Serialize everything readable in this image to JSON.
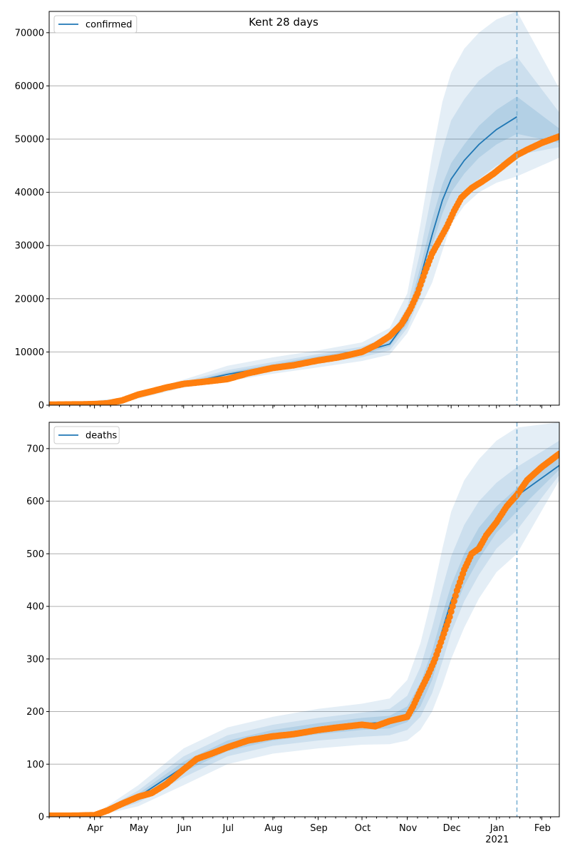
{
  "figure": {
    "title": "Kent 28 days"
  },
  "colors": {
    "model": "#1f77b4",
    "observed": "#ff7f0e",
    "band": "#1f77b4",
    "grid": "#b0b0b0",
    "now_line": "#7fb3d5"
  },
  "chart_data": [
    {
      "type": "line",
      "name": "confirmed-panel",
      "legend": {
        "label": "confirmed",
        "position": "top-left"
      },
      "grid": "y",
      "x_range": [
        "2020-03-01",
        "2021-02-13"
      ],
      "ylim": [
        0,
        74000
      ],
      "y_ticks": [
        0,
        10000,
        20000,
        30000,
        40000,
        50000,
        60000,
        70000
      ],
      "x_ticks": [
        {
          "date": "2020-04-01",
          "label": "Apr"
        },
        {
          "date": "2020-05-01",
          "label": "May"
        },
        {
          "date": "2020-06-01",
          "label": "Jun"
        },
        {
          "date": "2020-07-01",
          "label": "Jul"
        },
        {
          "date": "2020-08-01",
          "label": "Aug"
        },
        {
          "date": "2020-09-01",
          "label": "Sep"
        },
        {
          "date": "2020-10-01",
          "label": "Oct"
        },
        {
          "date": "2020-11-01",
          "label": "Nov"
        },
        {
          "date": "2020-12-01",
          "label": "Dec"
        },
        {
          "date": "2021-01-01",
          "label": "Jan",
          "sublabel": "2021"
        },
        {
          "date": "2021-02-01",
          "label": "Feb"
        }
      ],
      "show_tick_labels": false,
      "now_line": "2021-01-15",
      "series": [
        {
          "name": "confirmed",
          "kind": "model-line",
          "x": [
            "2020-03-01",
            "2020-04-01",
            "2020-04-20",
            "2020-05-01",
            "2020-06-01",
            "2020-07-01",
            "2020-08-01",
            "2020-09-01",
            "2020-10-01",
            "2020-10-20",
            "2020-11-01",
            "2020-11-10",
            "2020-11-18",
            "2020-11-25",
            "2020-12-01",
            "2020-12-10",
            "2020-12-20",
            "2021-01-01",
            "2021-01-15"
          ],
          "y": [
            0,
            200,
            800,
            2000,
            4000,
            5800,
            7300,
            8800,
            10000,
            11500,
            16000,
            24000,
            32000,
            38500,
            42500,
            46000,
            49000,
            51800,
            54200
          ]
        },
        {
          "name": "observed",
          "kind": "points",
          "x": [
            "2020-03-01",
            "2020-03-20",
            "2020-04-01",
            "2020-04-10",
            "2020-04-20",
            "2020-05-01",
            "2020-05-10",
            "2020-05-20",
            "2020-06-01",
            "2020-06-15",
            "2020-07-01",
            "2020-07-15",
            "2020-08-01",
            "2020-08-15",
            "2020-09-01",
            "2020-09-15",
            "2020-10-01",
            "2020-10-10",
            "2020-10-20",
            "2020-10-28",
            "2020-11-03",
            "2020-11-08",
            "2020-11-13",
            "2020-11-18",
            "2020-11-23",
            "2020-11-28",
            "2020-12-03",
            "2020-12-08",
            "2020-12-15",
            "2020-12-22",
            "2020-12-30",
            "2021-01-08",
            "2021-01-15",
            "2021-01-22",
            "2021-02-01",
            "2021-02-13"
          ],
          "y": [
            100,
            150,
            200,
            350,
            900,
            2000,
            2600,
            3300,
            4000,
            4400,
            4900,
            6000,
            7000,
            7500,
            8400,
            9000,
            10000,
            11200,
            13000,
            15200,
            18000,
            21000,
            25000,
            28500,
            31000,
            33500,
            36500,
            39000,
            40800,
            42000,
            43500,
            45500,
            47000,
            48000,
            49300,
            50500
          ]
        },
        {
          "name": "band-outer",
          "kind": "band",
          "x": [
            "2020-03-01",
            "2020-04-20",
            "2020-06-01",
            "2020-07-01",
            "2020-08-01",
            "2020-09-01",
            "2020-10-01",
            "2020-10-20",
            "2020-11-01",
            "2020-11-10",
            "2020-11-18",
            "2020-11-25",
            "2020-12-01",
            "2020-12-10",
            "2020-12-20",
            "2021-01-01",
            "2021-01-15",
            "2021-02-13"
          ],
          "lower": [
            0,
            500,
            3300,
            4500,
            5900,
            7100,
            8300,
            9500,
            13500,
            18500,
            23000,
            29000,
            34000,
            37500,
            40000,
            41800,
            43000,
            46500
          ],
          "upper": [
            0,
            1400,
            4800,
            7400,
            9000,
            10300,
            11800,
            14500,
            21000,
            34000,
            47000,
            57000,
            62500,
            67000,
            70000,
            72500,
            74000,
            59500
          ]
        },
        {
          "name": "band-mid",
          "kind": "band",
          "x": [
            "2020-03-01",
            "2020-04-20",
            "2020-06-01",
            "2020-07-01",
            "2020-08-01",
            "2020-09-01",
            "2020-10-01",
            "2020-10-20",
            "2020-11-01",
            "2020-11-10",
            "2020-11-18",
            "2020-11-25",
            "2020-12-01",
            "2020-12-10",
            "2020-12-20",
            "2021-01-01",
            "2021-01-15",
            "2021-02-13"
          ],
          "lower": [
            0,
            650,
            3600,
            5000,
            6500,
            7900,
            9000,
            10300,
            14500,
            20500,
            27000,
            32500,
            36500,
            39500,
            42500,
            45000,
            47000,
            48500
          ],
          "upper": [
            0,
            1150,
            4400,
            6600,
            8100,
            9600,
            11000,
            13000,
            18500,
            29000,
            40000,
            48000,
            53500,
            57500,
            61000,
            63500,
            65500,
            55000
          ]
        },
        {
          "name": "band-inner",
          "kind": "band",
          "x": [
            "2020-03-01",
            "2020-04-20",
            "2020-06-01",
            "2020-07-01",
            "2020-08-01",
            "2020-09-01",
            "2020-10-01",
            "2020-10-20",
            "2020-11-01",
            "2020-11-10",
            "2020-11-18",
            "2020-11-25",
            "2020-12-01",
            "2020-12-10",
            "2020-12-20",
            "2021-01-01",
            "2021-01-15",
            "2021-02-13"
          ],
          "lower": [
            0,
            720,
            3800,
            5400,
            6900,
            8300,
            9500,
            11000,
            15300,
            22200,
            30000,
            36000,
            40000,
            43500,
            46500,
            49000,
            51000,
            49300
          ],
          "upper": [
            0,
            900,
            4200,
            6200,
            7700,
            9200,
            10500,
            12200,
            17000,
            26000,
            35000,
            41500,
            45500,
            49000,
            52500,
            55500,
            58000,
            52000
          ]
        }
      ]
    },
    {
      "type": "line",
      "name": "deaths-panel",
      "legend": {
        "label": "deaths",
        "position": "top-left"
      },
      "grid": "y",
      "x_range": [
        "2020-03-01",
        "2021-02-13"
      ],
      "ylim": [
        0,
        750
      ],
      "y_ticks": [
        0,
        100,
        200,
        300,
        400,
        500,
        600,
        700
      ],
      "x_ticks": [
        {
          "date": "2020-04-01",
          "label": "Apr"
        },
        {
          "date": "2020-05-01",
          "label": "May"
        },
        {
          "date": "2020-06-01",
          "label": "Jun"
        },
        {
          "date": "2020-07-01",
          "label": "Jul"
        },
        {
          "date": "2020-08-01",
          "label": "Aug"
        },
        {
          "date": "2020-09-01",
          "label": "Sep"
        },
        {
          "date": "2020-10-01",
          "label": "Oct"
        },
        {
          "date": "2020-11-01",
          "label": "Nov"
        },
        {
          "date": "2020-12-01",
          "label": "Dec"
        },
        {
          "date": "2021-01-01",
          "label": "Jan",
          "sublabel": "2021"
        },
        {
          "date": "2021-02-01",
          "label": "Feb"
        }
      ],
      "show_tick_labels": true,
      "now_line": "2021-01-15",
      "series": [
        {
          "name": "deaths",
          "kind": "model-line",
          "x": [
            "2020-03-01",
            "2020-04-01",
            "2020-04-10",
            "2020-05-01",
            "2020-06-01",
            "2020-07-01",
            "2020-08-01",
            "2020-09-01",
            "2020-10-01",
            "2020-10-20",
            "2020-11-01",
            "2020-11-10",
            "2020-11-18",
            "2020-11-25",
            "2020-12-01",
            "2020-12-10",
            "2020-12-20",
            "2021-01-01",
            "2021-01-15",
            "2021-02-13"
          ],
          "y": [
            0,
            2,
            12,
            38,
            95,
            135,
            155,
            168,
            177,
            180,
            195,
            230,
            285,
            355,
            410,
            470,
            520,
            565,
            610,
            668
          ]
        },
        {
          "name": "observed",
          "kind": "points",
          "x": [
            "2020-03-01",
            "2020-03-15",
            "2020-04-01",
            "2020-04-10",
            "2020-04-20",
            "2020-05-01",
            "2020-05-10",
            "2020-05-20",
            "2020-06-01",
            "2020-06-10",
            "2020-06-20",
            "2020-07-01",
            "2020-07-15",
            "2020-08-01",
            "2020-08-15",
            "2020-09-01",
            "2020-09-15",
            "2020-10-01",
            "2020-10-10",
            "2020-10-20",
            "2020-11-01",
            "2020-11-05",
            "2020-11-10",
            "2020-11-15",
            "2020-11-20",
            "2020-11-25",
            "2020-11-30",
            "2020-12-05",
            "2020-12-10",
            "2020-12-15",
            "2020-12-20",
            "2020-12-25",
            "2021-01-01",
            "2021-01-08",
            "2021-01-15",
            "2021-01-22",
            "2021-02-01",
            "2021-02-13"
          ],
          "y": [
            2,
            2,
            3,
            12,
            25,
            38,
            45,
            62,
            90,
            110,
            120,
            132,
            145,
            153,
            157,
            165,
            170,
            175,
            172,
            182,
            190,
            210,
            240,
            268,
            300,
            340,
            380,
            430,
            470,
            500,
            510,
            535,
            560,
            590,
            612,
            640,
            665,
            690
          ]
        },
        {
          "name": "band-outer",
          "kind": "band",
          "x": [
            "2020-03-01",
            "2020-04-01",
            "2020-05-01",
            "2020-06-01",
            "2020-07-01",
            "2020-08-01",
            "2020-09-01",
            "2020-10-01",
            "2020-10-20",
            "2020-11-01",
            "2020-11-10",
            "2020-11-18",
            "2020-11-25",
            "2020-12-01",
            "2020-12-10",
            "2020-12-20",
            "2021-01-01",
            "2021-01-15",
            "2021-02-13"
          ],
          "lower": [
            0,
            1,
            20,
            60,
            100,
            120,
            130,
            137,
            138,
            145,
            165,
            200,
            250,
            300,
            360,
            415,
            465,
            500,
            640
          ],
          "upper": [
            0,
            4,
            60,
            130,
            170,
            190,
            205,
            215,
            225,
            260,
            330,
            420,
            510,
            580,
            640,
            680,
            715,
            740,
            750
          ]
        },
        {
          "name": "band-mid",
          "kind": "band",
          "x": [
            "2020-03-01",
            "2020-04-01",
            "2020-05-01",
            "2020-06-01",
            "2020-07-01",
            "2020-08-01",
            "2020-09-01",
            "2020-10-01",
            "2020-10-20",
            "2020-11-01",
            "2020-11-10",
            "2020-11-18",
            "2020-11-25",
            "2020-12-01",
            "2020-12-10",
            "2020-12-20",
            "2021-01-01",
            "2021-01-15",
            "2021-02-13"
          ],
          "lower": [
            0,
            1,
            27,
            75,
            115,
            135,
            145,
            152,
            155,
            165,
            190,
            235,
            295,
            350,
            410,
            460,
            510,
            545,
            650
          ],
          "upper": [
            0,
            3,
            50,
            115,
            155,
            175,
            188,
            198,
            205,
            230,
            285,
            360,
            435,
            495,
            555,
            600,
            635,
            665,
            715
          ]
        },
        {
          "name": "band-inner",
          "kind": "band",
          "x": [
            "2020-03-01",
            "2020-04-01",
            "2020-05-01",
            "2020-06-01",
            "2020-07-01",
            "2020-08-01",
            "2020-09-01",
            "2020-10-01",
            "2020-10-20",
            "2020-11-01",
            "2020-11-10",
            "2020-11-18",
            "2020-11-25",
            "2020-12-01",
            "2020-12-10",
            "2020-12-20",
            "2021-01-01",
            "2021-01-15",
            "2021-02-13"
          ],
          "lower": [
            0,
            2,
            32,
            85,
            125,
            145,
            157,
            165,
            168,
            180,
            210,
            260,
            325,
            380,
            440,
            490,
            540,
            580,
            660
          ],
          "upper": [
            0,
            3,
            44,
            105,
            145,
            165,
            178,
            188,
            192,
            210,
            255,
            315,
            385,
            440,
            500,
            550,
            590,
            625,
            690
          ]
        }
      ]
    }
  ]
}
